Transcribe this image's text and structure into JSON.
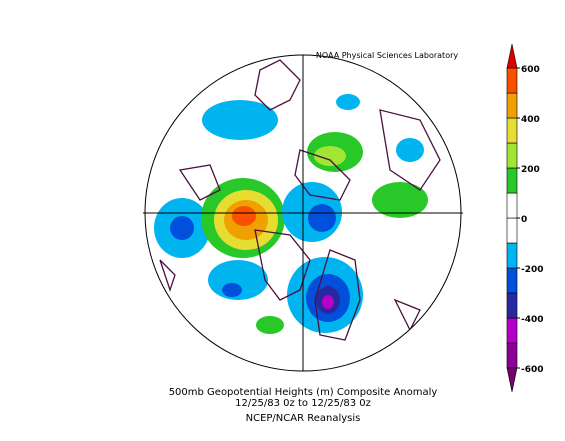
{
  "header": {
    "credit": "NOAA Physical Sciences Laboratory"
  },
  "footer": {
    "lines": [
      "500mb Geopotential Heights (m)   Composite Anomaly",
      "12/25/83 0z  to 12/25/83 0z",
      "NCEP/NCAR Reanalysis"
    ]
  },
  "colorbar": {
    "bounds": [
      -600,
      -500,
      -400,
      -300,
      -200,
      -100,
      0,
      100,
      200,
      300,
      400,
      500,
      600
    ],
    "colors": [
      "#8c0096",
      "#b400c8",
      "#2828a0",
      "#0050dc",
      "#00b4f0",
      "#ffffff",
      "#ffffff",
      "#28c828",
      "#a0e632",
      "#e6dc32",
      "#f0a000",
      "#fa5000"
    ],
    "low_color": "#78006e",
    "high_color": "#dc0000",
    "ticks": [
      600,
      400,
      200,
      0,
      -200,
      -400,
      -600
    ]
  }
}
